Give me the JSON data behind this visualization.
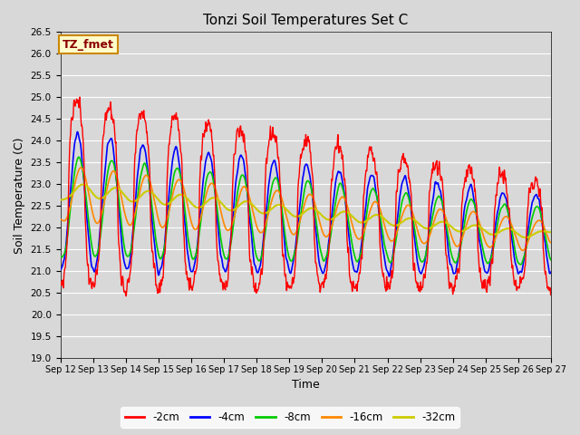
{
  "title": "Tonzi Soil Temperatures Set C",
  "xlabel": "Time",
  "ylabel": "Soil Temperature (C)",
  "ylim": [
    19.0,
    26.5
  ],
  "yticks": [
    19.0,
    19.5,
    20.0,
    20.5,
    21.0,
    21.5,
    22.0,
    22.5,
    23.0,
    23.5,
    24.0,
    24.5,
    25.0,
    25.5,
    26.0,
    26.5
  ],
  "xtick_labels": [
    "Sep 12",
    "Sep 13",
    "Sep 14",
    "Sep 15",
    "Sep 16",
    "Sep 17",
    "Sep 18",
    "Sep 19",
    "Sep 20",
    "Sep 21",
    "Sep 22",
    "Sep 23",
    "Sep 24",
    "Sep 25",
    "Sep 26",
    "Sep 27"
  ],
  "colors": {
    "-2cm": "#FF0000",
    "-4cm": "#0000FF",
    "-8cm": "#00CC00",
    "-16cm": "#FF8800",
    "-32cm": "#CCCC00"
  },
  "legend_label": "TZ_fmet",
  "legend_bg": "#FFFFCC",
  "legend_border": "#CC8800",
  "bg_color": "#D8D8D8",
  "grid_color": "#FFFFFF"
}
